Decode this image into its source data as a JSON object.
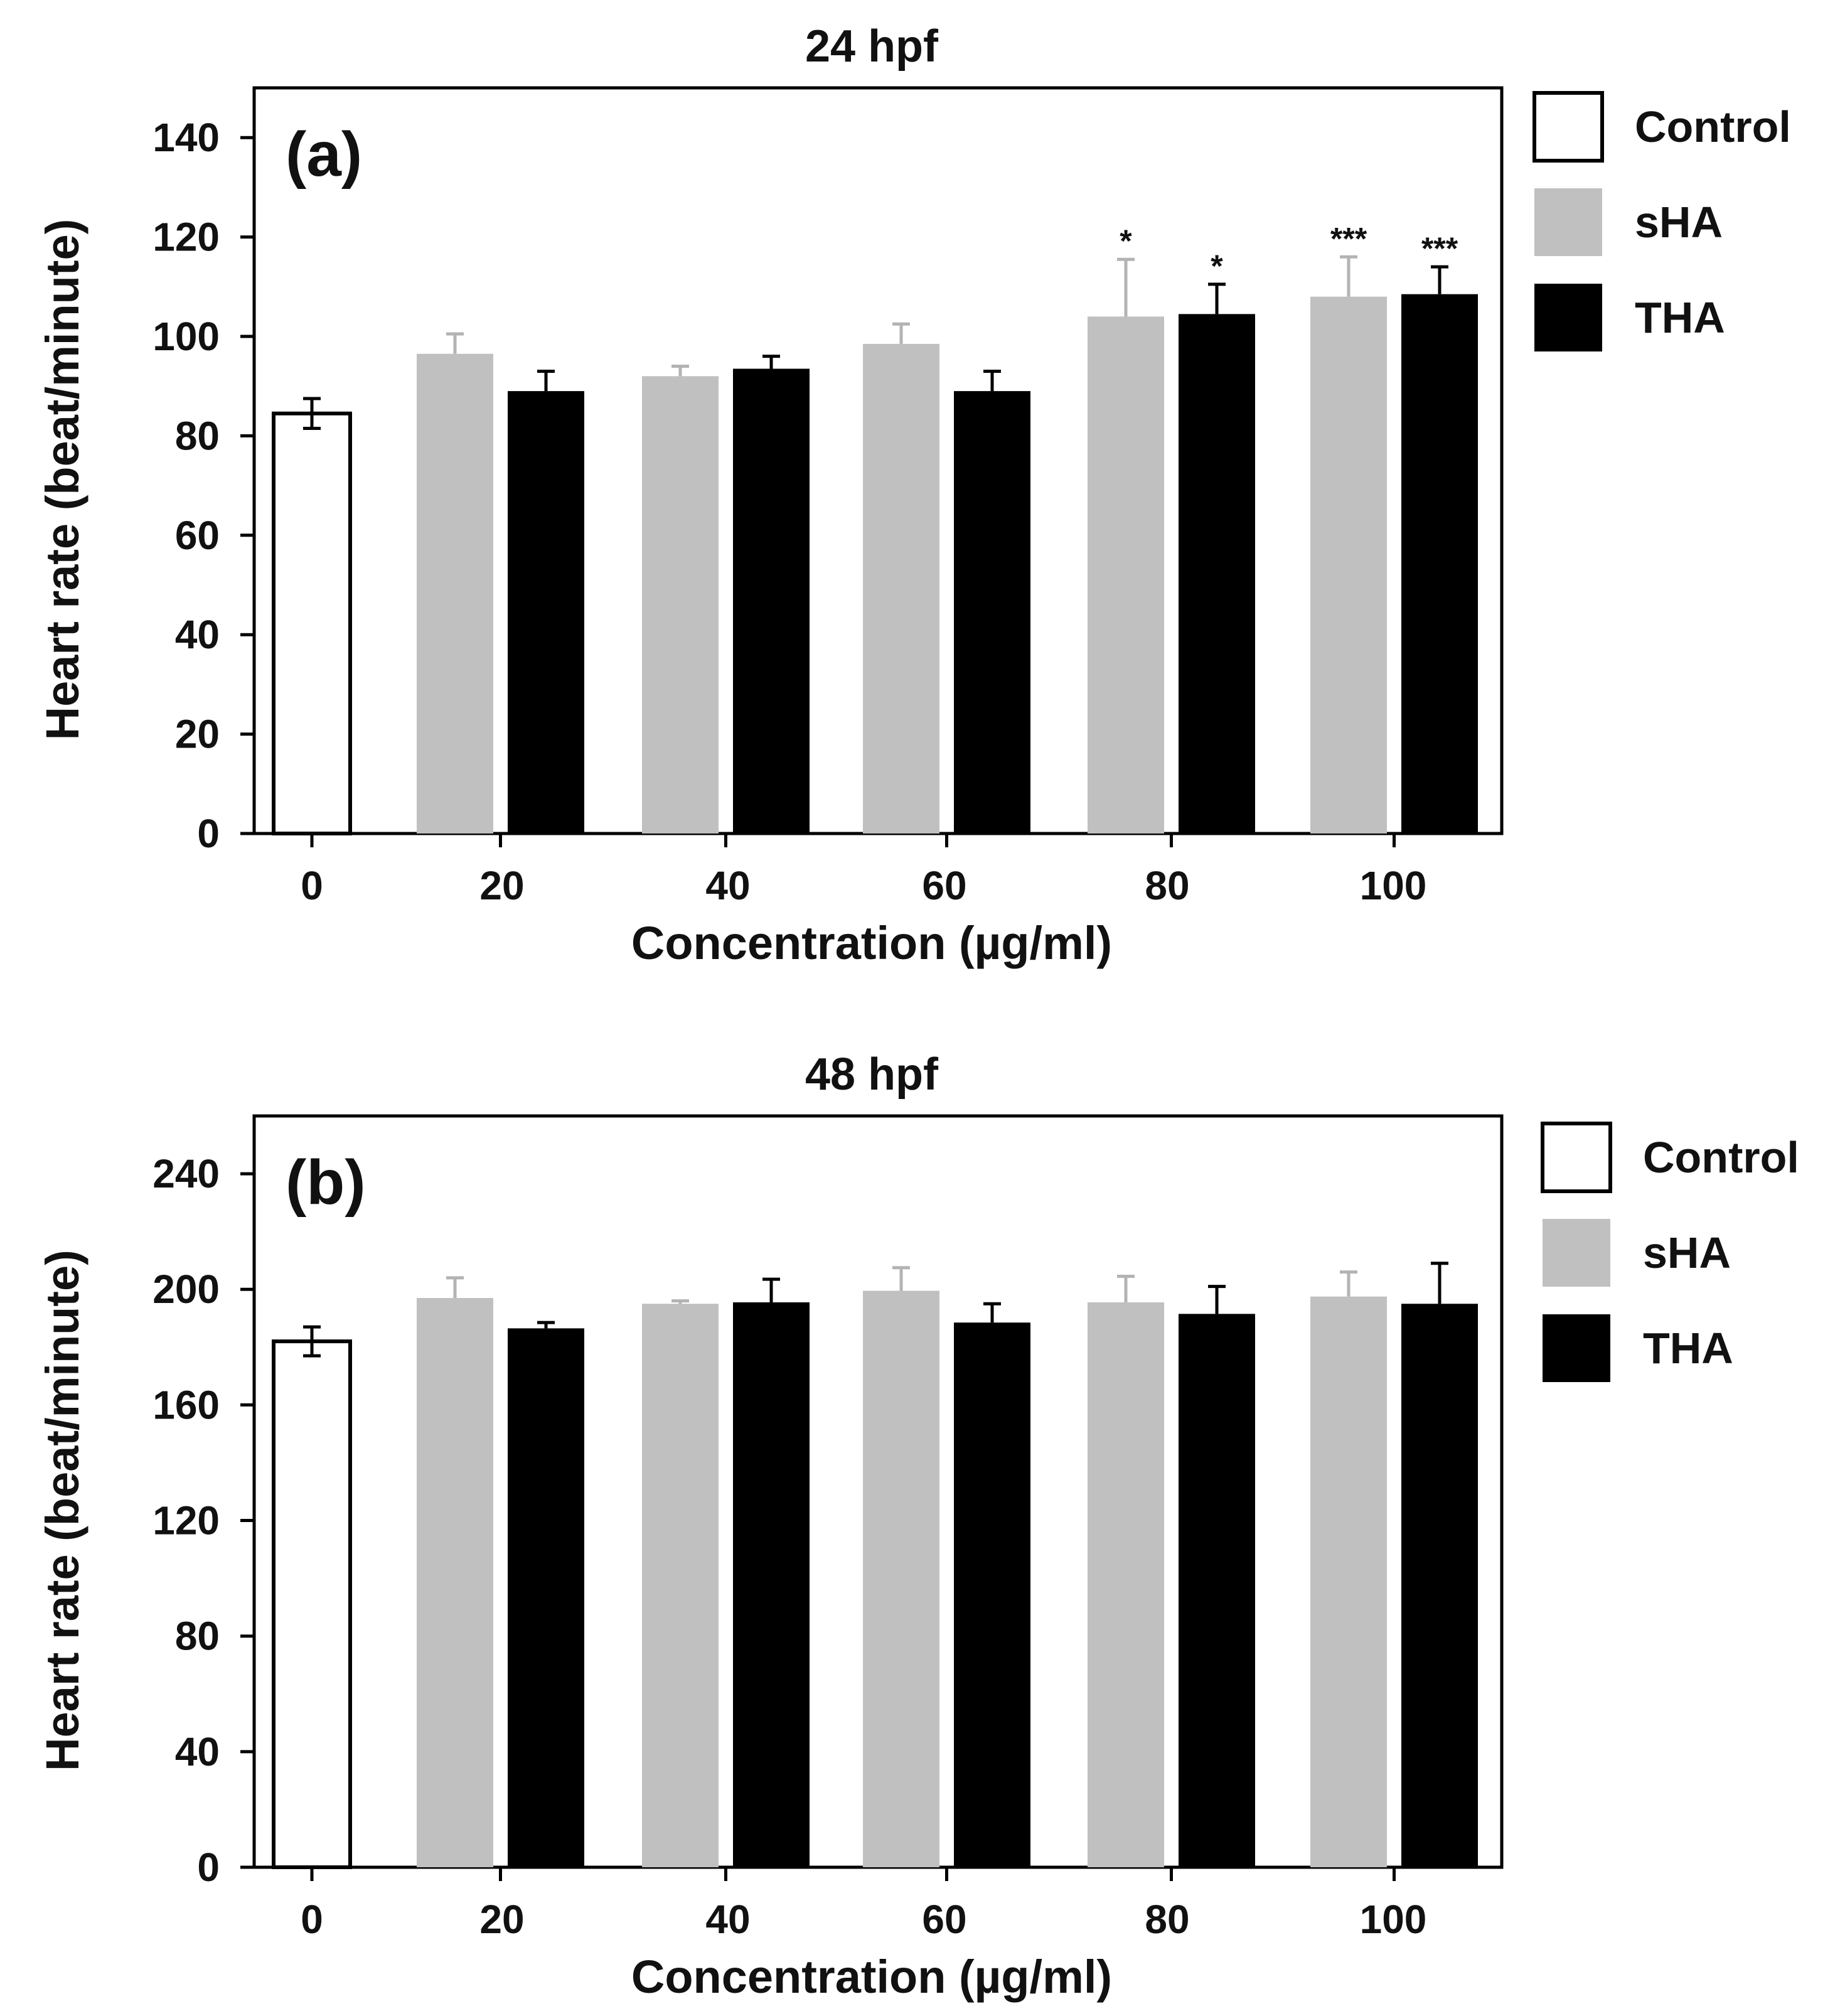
{
  "chart_data": [
    {
      "type": "bar",
      "panel_label": "(a)",
      "title": "24 hpf",
      "xlabel": "Concentration  (µg/ml)",
      "ylabel": "Heart rate (beat/minute)",
      "ylim": [
        0,
        150
      ],
      "yticks": [
        0,
        20,
        40,
        60,
        80,
        100,
        120,
        140
      ],
      "yticks_labels": [
        "0",
        "20",
        "40",
        "60",
        "80",
        "100",
        "120",
        "140"
      ],
      "categories": [
        "0",
        "20",
        "40",
        "60",
        "80",
        "100"
      ],
      "series": [
        {
          "name": "Control",
          "color": "#ffffff",
          "values": [
            84.5,
            null,
            null,
            null,
            null,
            null
          ],
          "errors": [
            3,
            null,
            null,
            null,
            null,
            null
          ],
          "significance": [
            "",
            "",
            "",
            "",
            "",
            ""
          ]
        },
        {
          "name": "sHA",
          "color": "#c0c0c0",
          "values": [
            null,
            96.5,
            92,
            98.5,
            104,
            108
          ],
          "errors": [
            null,
            4,
            2,
            4,
            11.5,
            8
          ],
          "significance": [
            "",
            "",
            "",
            "",
            "*",
            "***"
          ]
        },
        {
          "name": "THA",
          "color": "#000000",
          "values": [
            null,
            89,
            93.5,
            89,
            104.5,
            108.5
          ],
          "errors": [
            null,
            4,
            2.5,
            4,
            6,
            5.5
          ],
          "significance": [
            "",
            "",
            "",
            "",
            "*",
            "***"
          ]
        }
      ],
      "legend": [
        "Control",
        "sHA",
        "THA"
      ],
      "legend_position": "right"
    },
    {
      "type": "bar",
      "panel_label": "(b)",
      "title": "48 hpf",
      "xlabel": "Concentration  (µg/ml)",
      "ylabel": "Heart rate (beat/minute)",
      "ylim": [
        0,
        260
      ],
      "yticks": [
        0,
        40,
        80,
        120,
        160,
        200,
        240
      ],
      "yticks_labels": [
        "0",
        "40",
        "80",
        "120",
        "160",
        "200",
        "240"
      ],
      "categories": [
        "0",
        "20",
        "40",
        "60",
        "80",
        "100"
      ],
      "series": [
        {
          "name": "Control",
          "color": "#ffffff",
          "values": [
            182,
            null,
            null,
            null,
            null,
            null
          ],
          "errors": [
            5,
            null,
            null,
            null,
            null,
            null
          ],
          "significance": [
            "",
            "",
            "",
            "",
            "",
            ""
          ]
        },
        {
          "name": "sHA",
          "color": "#c0c0c0",
          "values": [
            null,
            197,
            195,
            199.5,
            195.5,
            197.5
          ],
          "errors": [
            null,
            7,
            1,
            8,
            9,
            8.5
          ],
          "significance": [
            "",
            "",
            "",
            "",
            "",
            ""
          ]
        },
        {
          "name": "THA",
          "color": "#000000",
          "values": [
            null,
            186.5,
            195.5,
            188.5,
            191.5,
            195
          ],
          "errors": [
            null,
            2,
            8,
            6.5,
            9.5,
            14
          ],
          "significance": [
            "",
            "",
            "",
            "",
            "",
            ""
          ]
        }
      ],
      "legend": [
        "Control",
        "sHA",
        "THA"
      ],
      "legend_position": "right"
    }
  ]
}
